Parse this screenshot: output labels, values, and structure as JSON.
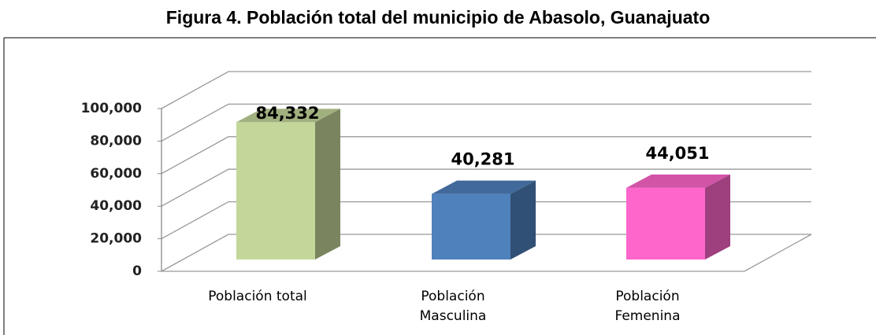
{
  "chart_data": {
    "type": "bar3d",
    "title": "Figura 4. Población total del municipio de Abasolo, Guanajuato",
    "categories": [
      "Población total",
      "Población Masculina",
      "Población Femenina"
    ],
    "values": [
      84332,
      40281,
      44051
    ],
    "value_labels": [
      "84,332",
      "40,281",
      "44,051"
    ],
    "colors": [
      "#c4d79b",
      "#4f81bd",
      "#ff66cc"
    ],
    "ylim": [
      0,
      100000
    ],
    "yticks": [
      0,
      {
        "value": 20000,
        "label": "20,000"
      },
      {
        "value": 40000,
        "label": "40,000"
      },
      {
        "value": 60000,
        "label": "60,000"
      },
      {
        "value": 80000,
        "label": "80,000"
      },
      {
        "value": 100000,
        "label": "100,000"
      }
    ],
    "grid": true
  }
}
